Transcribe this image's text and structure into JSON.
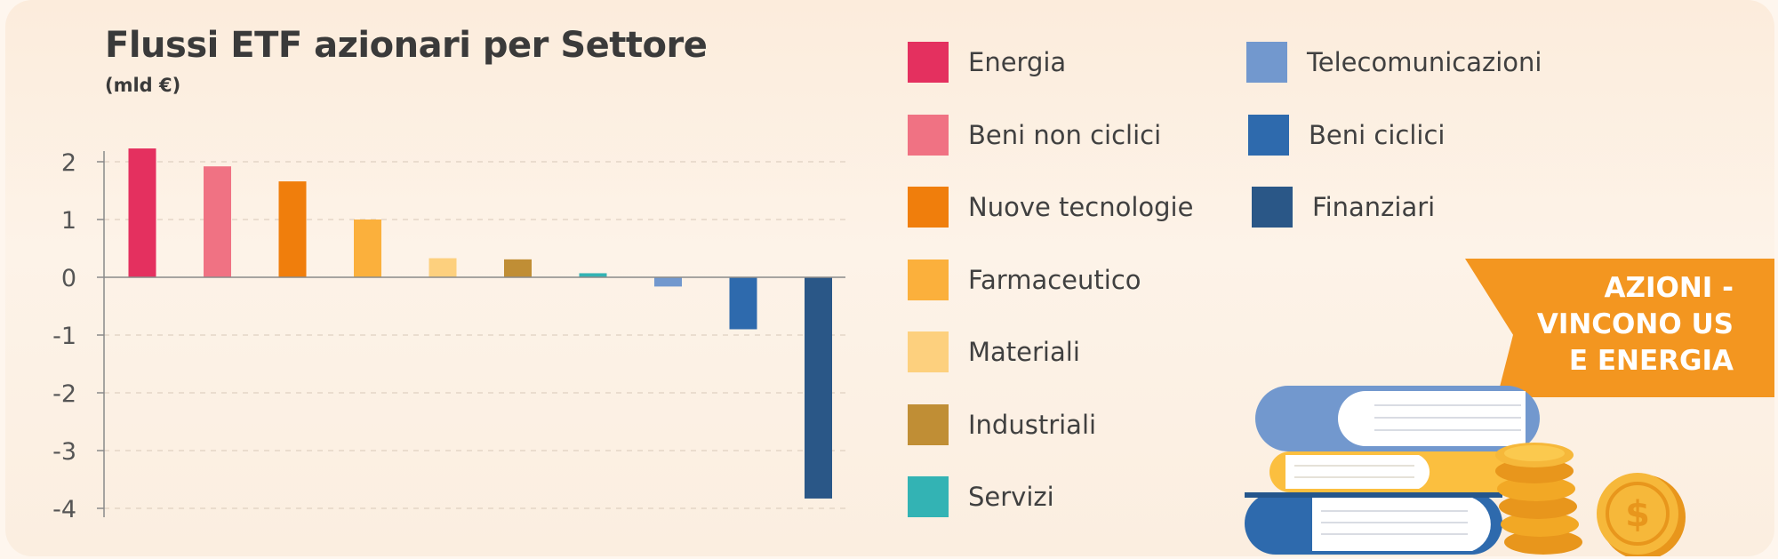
{
  "chart_data": {
    "type": "bar",
    "title": "Flussi ETF azionari per Settore",
    "subtitle": "(mld €)",
    "xlabel": "",
    "ylabel": "",
    "ylim": [
      -4.2,
      2.3
    ],
    "yticks": [
      2,
      1,
      0,
      -1,
      -2,
      -3,
      -4
    ],
    "ytick_labels": [
      "2",
      "1",
      "0",
      "-1",
      "-2",
      "-3",
      "-4"
    ],
    "grid": true,
    "legend_position": "right",
    "categories": [
      "Energia",
      "Beni non ciclici",
      "Nuove tecnologie",
      "Farmaceutico",
      "Materiali",
      "Industriali",
      "Servizi",
      "Telecomunicazioni",
      "Beni ciclici",
      "Finanziari"
    ],
    "values": [
      2.23,
      1.92,
      1.66,
      1.0,
      0.33,
      0.31,
      0.07,
      -0.16,
      -0.9,
      -3.83
    ],
    "colors": [
      "#e4305f",
      "#f07283",
      "#f07e0c",
      "#fbb03c",
      "#fdd07e",
      "#c08e35",
      "#33b3b4",
      "#7298ce",
      "#2e6aad",
      "#2a5787"
    ]
  },
  "legend": {
    "items": [
      {
        "label": "Energia",
        "color": "#e4305f"
      },
      {
        "label": "Beni non ciclici",
        "color": "#f07283"
      },
      {
        "label": "Nuove tecnologie",
        "color": "#f07e0c"
      },
      {
        "label": "Farmaceutico",
        "color": "#fbb03c"
      },
      {
        "label": "Materiali",
        "color": "#fdd07e"
      },
      {
        "label": "Industriali",
        "color": "#c08e35"
      },
      {
        "label": "Servizi",
        "color": "#33b3b4"
      },
      {
        "label": "Telecomunicazioni",
        "color": "#7298ce"
      },
      {
        "label": "Beni ciclici",
        "color": "#2e6aad"
      },
      {
        "label": "Finanziari",
        "color": "#2a5787"
      }
    ]
  },
  "banner": {
    "lines": [
      "AZIONI -",
      "VINCONO US",
      "E ENERGIA"
    ],
    "color": "#f39620"
  },
  "illustration": {
    "icons": [
      "books-stack-icon",
      "coins-stack-icon",
      "dollar-coin-icon"
    ]
  }
}
